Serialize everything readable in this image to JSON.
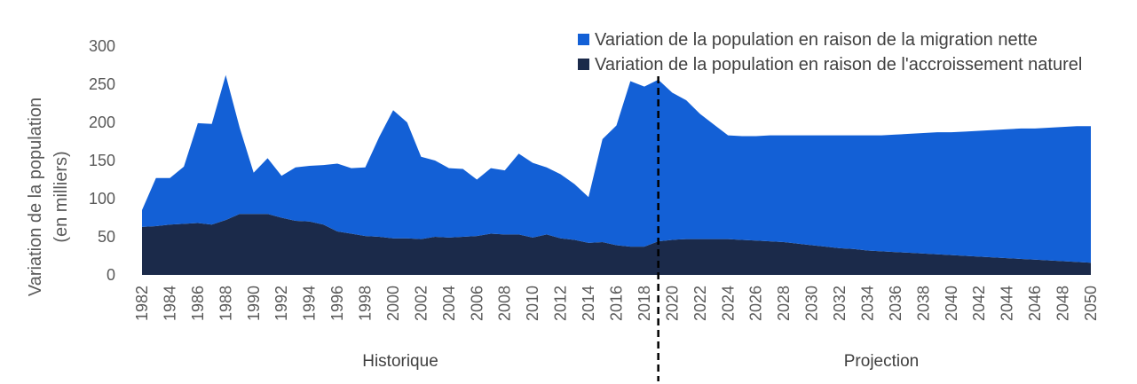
{
  "chart_data": {
    "type": "area",
    "stacked": true,
    "x": [
      1982,
      1983,
      1984,
      1985,
      1986,
      1987,
      1988,
      1989,
      1990,
      1991,
      1992,
      1993,
      1994,
      1995,
      1996,
      1997,
      1998,
      1999,
      2000,
      2001,
      2002,
      2003,
      2004,
      2005,
      2006,
      2007,
      2008,
      2009,
      2010,
      2011,
      2012,
      2013,
      2014,
      2015,
      2016,
      2017,
      2018,
      2019,
      2020,
      2021,
      2022,
      2023,
      2024,
      2025,
      2026,
      2027,
      2028,
      2029,
      2030,
      2031,
      2032,
      2033,
      2034,
      2035,
      2036,
      2037,
      2038,
      2039,
      2040,
      2041,
      2042,
      2043,
      2044,
      2045,
      2046,
      2047,
      2048,
      2049,
      2050
    ],
    "x_tick_labels": [
      "1982",
      "1984",
      "1986",
      "1988",
      "1990",
      "1992",
      "1994",
      "1996",
      "1998",
      "2000",
      "2002",
      "2004",
      "2006",
      "2008",
      "2010",
      "2012",
      "2014",
      "2016",
      "2018",
      "2020",
      "2022",
      "2024",
      "2026",
      "2028",
      "2030",
      "2032",
      "2034",
      "2036",
      "2038",
      "2040",
      "2042",
      "2044",
      "2046",
      "2048",
      "2050"
    ],
    "series": [
      {
        "name": "Variation de la population en raison de l'accroissement naturel",
        "color": "#1b2a4a",
        "values": [
          63,
          64,
          66,
          67,
          68,
          66,
          72,
          80,
          80,
          80,
          75,
          71,
          70,
          66,
          57,
          54,
          51,
          50,
          48,
          48,
          47,
          50,
          49,
          50,
          51,
          54,
          53,
          53,
          49,
          53,
          48,
          46,
          42,
          43,
          39,
          37,
          37,
          44,
          46,
          47,
          47,
          47,
          47,
          46,
          45,
          44,
          43,
          41,
          39,
          37,
          35,
          34,
          32,
          31,
          30,
          29,
          28,
          27,
          26,
          25,
          24,
          23,
          22,
          21,
          20,
          19,
          18,
          17,
          16
        ]
      },
      {
        "name": "Variation de la population en raison de la migration nette",
        "color": "#1360d6",
        "values": [
          22,
          63,
          61,
          75,
          131,
          132,
          190,
          113,
          54,
          73,
          55,
          70,
          73,
          78,
          89,
          86,
          90,
          131,
          168,
          152,
          108,
          100,
          91,
          89,
          74,
          86,
          84,
          106,
          98,
          88,
          84,
          73,
          60,
          135,
          157,
          217,
          210,
          212,
          193,
          182,
          164,
          150,
          136,
          136,
          137,
          139,
          140,
          142,
          144,
          146,
          148,
          149,
          151,
          152,
          154,
          156,
          158,
          160,
          161,
          163,
          165,
          167,
          169,
          171,
          172,
          174,
          176,
          178,
          179
        ]
      }
    ],
    "ylabel_line1": "Variation de la population",
    "ylabel_line2": "(en milliers)",
    "ylim": [
      0,
      300
    ],
    "y_ticks": [
      0,
      50,
      100,
      150,
      200,
      250,
      300
    ],
    "grid": false,
    "legend_position": "top-right",
    "divider_x": 2019,
    "section_labels": {
      "historical": "Historique",
      "projection": "Projection"
    }
  }
}
